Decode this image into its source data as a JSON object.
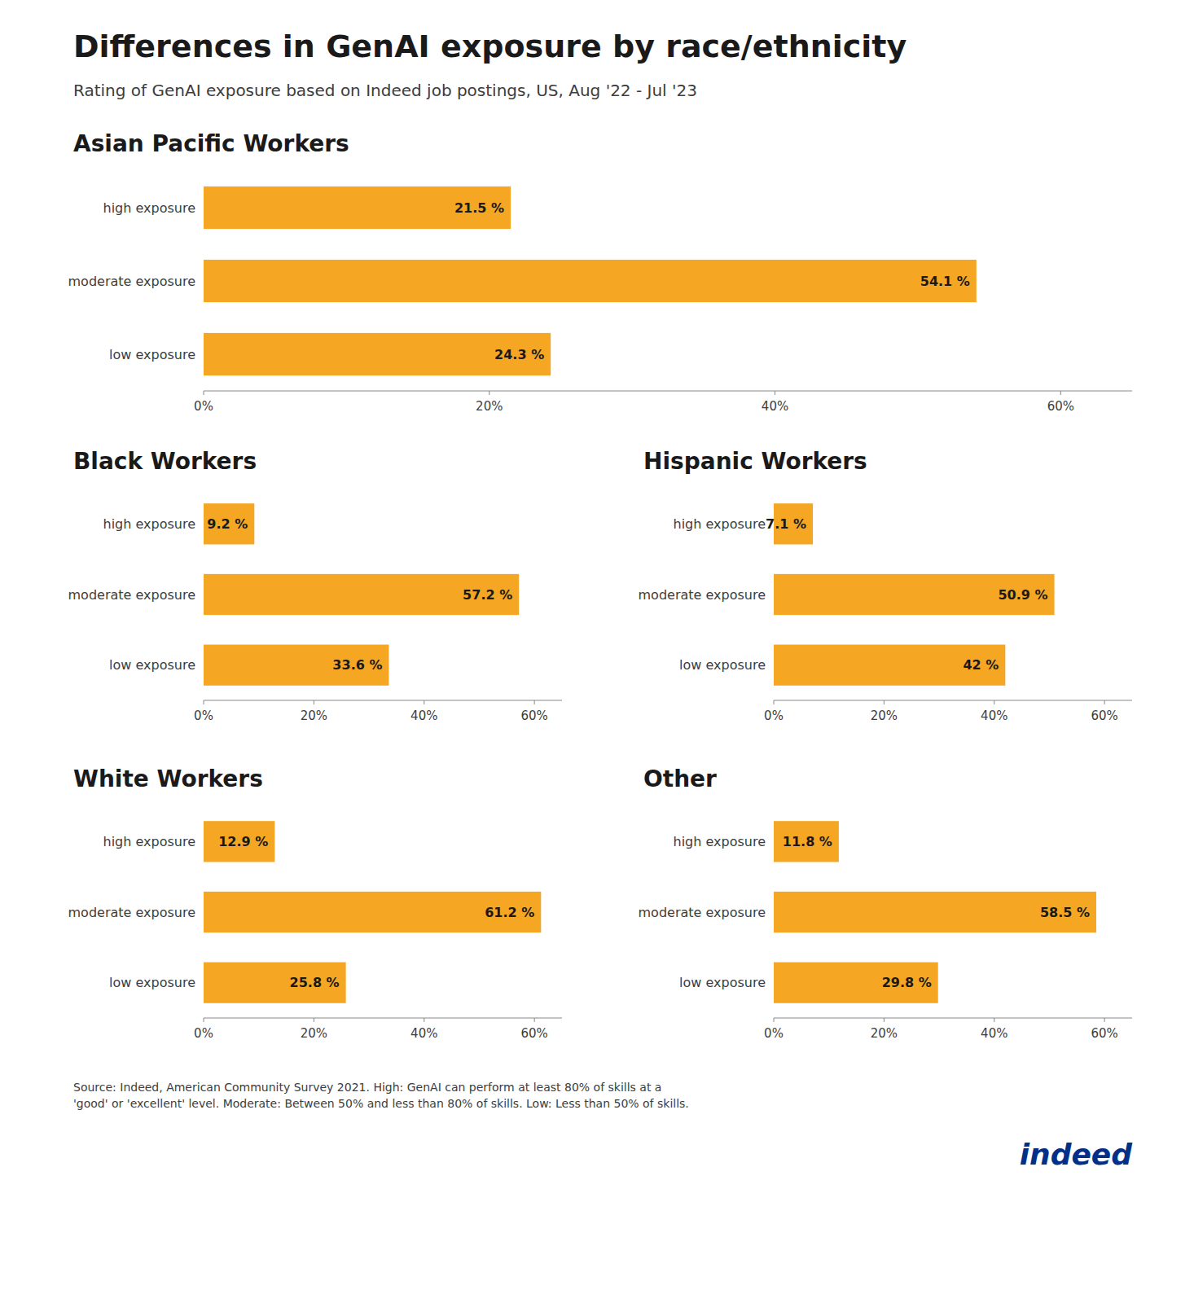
{
  "title": "Differences in GenAI exposure by race/ethnicity",
  "subtitle": "Rating of GenAI exposure based on Indeed job postings, US, Aug '22 - Jul '23",
  "annotations": [
    {
      "text": "Source: Indeed, American Community Survey 2021. High: GenAI can perform at least 80% of skills at a\n'good' or 'excellent' level. Moderate: Between 50% and less than 80% of skills. Low: Less than 50% of skills."
    },
    {
      "text": "indeed",
      "color": "#003087"
    }
  ],
  "chart_data": [
    {
      "type": "bar",
      "orientation": "horizontal",
      "title": "Asian Pacific Workers",
      "categories": [
        "high exposure",
        "moderate exposure",
        "low exposure"
      ],
      "values": [
        21.5,
        54.1,
        24.3
      ],
      "value_labels": [
        "21.5 %",
        "54.1 %",
        "24.3 %"
      ],
      "data_labels": true,
      "color": "#F5A623",
      "grid": false,
      "xlim": [
        0,
        65
      ],
      "xticks": [
        {
          "value": 0,
          "label": "0%"
        },
        {
          "value": 20,
          "label": "20%"
        },
        {
          "value": 40,
          "label": "40%"
        },
        {
          "value": 60,
          "label": "60%"
        }
      ]
    },
    {
      "type": "bar",
      "orientation": "horizontal",
      "title": "Black Workers",
      "categories": [
        "high exposure",
        "moderate exposure",
        "low exposure"
      ],
      "values": [
        9.2,
        57.2,
        33.6
      ],
      "value_labels": [
        "9.2 %",
        "57.2 %",
        "33.6 %"
      ],
      "data_labels": true,
      "color": "#F5A623",
      "grid": false,
      "xlim": [
        0,
        65
      ],
      "xticks": [
        {
          "value": 0,
          "label": "0%"
        },
        {
          "value": 20,
          "label": "20%"
        },
        {
          "value": 40,
          "label": "40%"
        },
        {
          "value": 60,
          "label": "60%"
        }
      ]
    },
    {
      "type": "bar",
      "orientation": "horizontal",
      "title": "Hispanic Workers",
      "categories": [
        "high exposure",
        "moderate exposure",
        "low exposure"
      ],
      "values": [
        7.1,
        50.9,
        42.0
      ],
      "value_labels": [
        "7.1 %",
        "50.9 %",
        "42 %"
      ],
      "data_labels": true,
      "color": "#F5A623",
      "grid": false,
      "xlim": [
        0,
        65
      ],
      "xticks": [
        {
          "value": 0,
          "label": "0%"
        },
        {
          "value": 20,
          "label": "20%"
        },
        {
          "value": 40,
          "label": "40%"
        },
        {
          "value": 60,
          "label": "60%"
        }
      ]
    },
    {
      "type": "bar",
      "orientation": "horizontal",
      "title": "White Workers",
      "categories": [
        "high exposure",
        "moderate exposure",
        "low exposure"
      ],
      "values": [
        12.9,
        61.2,
        25.8
      ],
      "value_labels": [
        "12.9 %",
        "61.2 %",
        "25.8 %"
      ],
      "data_labels": true,
      "color": "#F5A623",
      "grid": false,
      "xlim": [
        0,
        65
      ],
      "xticks": [
        {
          "value": 0,
          "label": "0%"
        },
        {
          "value": 20,
          "label": "20%"
        },
        {
          "value": 40,
          "label": "40%"
        },
        {
          "value": 60,
          "label": "60%"
        }
      ]
    },
    {
      "type": "bar",
      "orientation": "horizontal",
      "title": "Other",
      "categories": [
        "high exposure",
        "moderate exposure",
        "low exposure"
      ],
      "values": [
        11.8,
        58.5,
        29.8
      ],
      "value_labels": [
        "11.8 %",
        "58.5 %",
        "29.8 %"
      ],
      "data_labels": true,
      "color": "#F5A623",
      "grid": false,
      "xlim": [
        0,
        65
      ],
      "xticks": [
        {
          "value": 0,
          "label": "0%"
        },
        {
          "value": 20,
          "label": "20%"
        },
        {
          "value": 40,
          "label": "40%"
        },
        {
          "value": 60,
          "label": "60%"
        }
      ]
    }
  ]
}
